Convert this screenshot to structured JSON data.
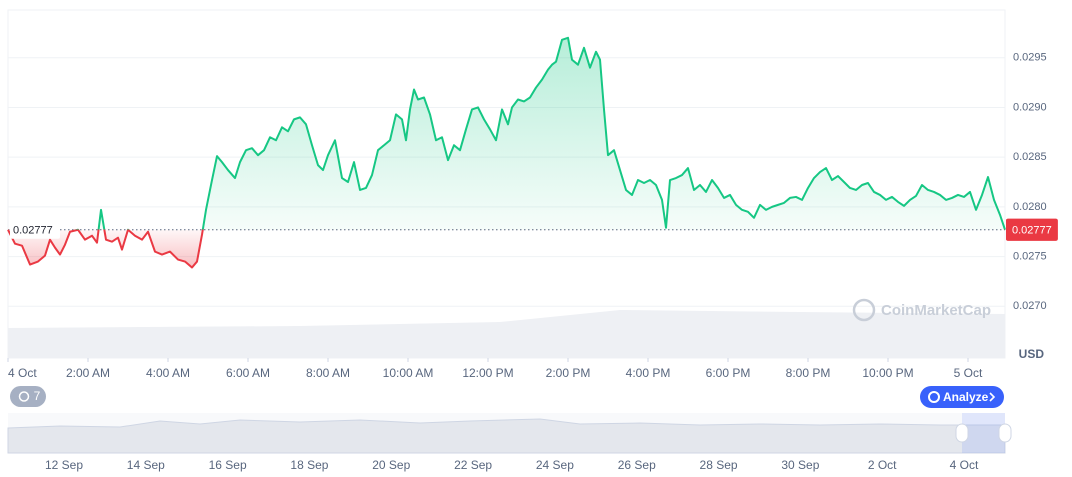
{
  "chart_data": {
    "type": "line",
    "x": [
      0,
      0.175,
      0.35,
      0.55,
      0.75,
      0.925,
      1.05,
      1.175,
      1.3,
      1.425,
      1.55,
      1.75,
      1.925,
      2.1,
      2.225,
      2.325,
      2.45,
      2.6,
      2.75,
      2.85,
      3,
      3.175,
      3.35,
      3.5,
      3.675,
      3.85,
      4.05,
      4.25,
      4.425,
      4.6,
      4.725,
      4.85,
      4.95,
      5.1,
      5.225,
      5.35,
      5.5,
      5.675,
      5.8,
      5.95,
      6.1,
      6.25,
      6.4,
      6.55,
      6.7,
      6.85,
      7,
      7.15,
      7.3,
      7.45,
      7.6,
      7.75,
      7.875,
      8,
      8.175,
      8.35,
      8.5,
      8.65,
      8.8,
      8.95,
      9.1,
      9.25,
      9.4,
      9.55,
      9.7,
      9.85,
      9.95,
      10.05,
      10.15,
      10.25,
      10.4,
      10.55,
      10.7,
      10.85,
      11,
      11.15,
      11.3,
      11.45,
      11.6,
      11.75,
      11.9,
      12.05,
      12.2,
      12.35,
      12.5,
      12.6,
      12.75,
      12.9,
      13.05,
      13.2,
      13.35,
      13.5,
      13.6,
      13.7,
      13.85,
      14,
      14.1,
      14.25,
      14.4,
      14.55,
      14.7,
      14.8,
      14.9,
      15,
      15.15,
      15.3,
      15.45,
      15.6,
      15.75,
      15.9,
      16.05,
      16.2,
      16.35,
      16.45,
      16.55,
      16.7,
      16.85,
      17,
      17.15,
      17.3,
      17.45,
      17.6,
      17.75,
      17.9,
      18.05,
      18.2,
      18.35,
      18.5,
      18.65,
      18.8,
      18.95,
      19.1,
      19.25,
      19.4,
      19.55,
      19.7,
      19.85,
      20,
      20.15,
      20.3,
      20.45,
      20.6,
      20.75,
      20.9,
      21.05,
      21.2,
      21.35,
      21.5,
      21.65,
      21.8,
      21.95,
      22.1,
      22.25,
      22.4,
      22.55,
      22.7,
      22.85,
      23,
      23.15,
      23.3,
      23.45,
      23.6,
      23.75,
      23.9,
      24.05,
      24.2,
      24.35,
      24.5,
      24.65,
      24.8,
      24.925
    ],
    "values": [
      0.02777,
      0.02763,
      0.02761,
      0.02742,
      0.02745,
      0.02751,
      0.02767,
      0.02759,
      0.02752,
      0.02762,
      0.02775,
      0.02777,
      0.02767,
      0.02771,
      0.02764,
      0.02797,
      0.02767,
      0.02765,
      0.02769,
      0.02757,
      0.02777,
      0.02771,
      0.02767,
      0.02775,
      0.02755,
      0.02752,
      0.02755,
      0.02747,
      0.02745,
      0.02739,
      0.02745,
      0.02772,
      0.02797,
      0.02827,
      0.02851,
      0.02845,
      0.02837,
      0.02829,
      0.02845,
      0.02857,
      0.02859,
      0.02852,
      0.02857,
      0.0287,
      0.02867,
      0.0288,
      0.02876,
      0.02888,
      0.0289,
      0.02883,
      0.02862,
      0.02842,
      0.02837,
      0.02852,
      0.02867,
      0.02829,
      0.02825,
      0.02845,
      0.02817,
      0.02819,
      0.02832,
      0.02857,
      0.02862,
      0.02867,
      0.02893,
      0.02888,
      0.02867,
      0.02898,
      0.02918,
      0.02908,
      0.0291,
      0.02893,
      0.02867,
      0.0287,
      0.02847,
      0.02862,
      0.02857,
      0.02878,
      0.02898,
      0.029,
      0.02888,
      0.02878,
      0.02867,
      0.02898,
      0.02883,
      0.029,
      0.02908,
      0.02906,
      0.0291,
      0.0292,
      0.02928,
      0.02938,
      0.02943,
      0.02946,
      0.02968,
      0.0297,
      0.02948,
      0.02943,
      0.0296,
      0.0294,
      0.02956,
      0.02948,
      0.02898,
      0.02852,
      0.02857,
      0.02837,
      0.02817,
      0.02812,
      0.02827,
      0.02824,
      0.02827,
      0.02822,
      0.02807,
      0.02779,
      0.02827,
      0.02829,
      0.02832,
      0.02839,
      0.02817,
      0.02822,
      0.02815,
      0.02827,
      0.02819,
      0.02809,
      0.02812,
      0.02802,
      0.02797,
      0.02795,
      0.02789,
      0.02802,
      0.02797,
      0.028,
      0.02802,
      0.02804,
      0.02809,
      0.0281,
      0.02807,
      0.02819,
      0.02829,
      0.02835,
      0.02839,
      0.02827,
      0.02831,
      0.02825,
      0.02819,
      0.02817,
      0.02822,
      0.02824,
      0.02815,
      0.02812,
      0.02807,
      0.0281,
      0.02805,
      0.02801,
      0.02807,
      0.02811,
      0.02822,
      0.02817,
      0.02815,
      0.02812,
      0.02807,
      0.02809,
      0.02812,
      0.0281,
      0.02815,
      0.02797,
      0.02812,
      0.0283,
      0.02807,
      0.02792,
      0.02777
    ],
    "reference": 0.02777,
    "color_up": "#16c784",
    "color_down": "#ea3943",
    "xlim": [
      0,
      24.925
    ],
    "ylim": [
      0.02648,
      0.02998
    ],
    "xticks": [
      {
        "value": 0,
        "label": "4 Oct"
      },
      {
        "value": 2,
        "label": "2:00 AM"
      },
      {
        "value": 4,
        "label": "4:00 AM"
      },
      {
        "value": 6,
        "label": "6:00 AM"
      },
      {
        "value": 8,
        "label": "8:00 AM"
      },
      {
        "value": 10,
        "label": "10:00 AM"
      },
      {
        "value": 12,
        "label": "12:00 PM"
      },
      {
        "value": 14,
        "label": "2:00 PM"
      },
      {
        "value": 16,
        "label": "4:00 PM"
      },
      {
        "value": 18,
        "label": "6:00 PM"
      },
      {
        "value": 20,
        "label": "8:00 PM"
      },
      {
        "value": 22,
        "label": "10:00 PM"
      },
      {
        "value": 24,
        "label": "5 Oct"
      }
    ],
    "yticks": [
      {
        "value": 0.027,
        "label": "0.0270"
      },
      0.0275,
      {
        "value": 0.028,
        "label": "0.0280"
      },
      0.0285,
      {
        "value": 0.029,
        "label": "0.0290"
      },
      0.0295
    ],
    "grid": true,
    "y_unit": "USD",
    "watermark": "CoinMarketCap"
  },
  "controls": {
    "history_count": 7,
    "analyze_button": "Analyze"
  },
  "navigator": {
    "labels": [
      "12 Sep",
      "14 Sep",
      "16 Sep",
      "18 Sep",
      "20 Sep",
      "22 Sep",
      "24 Sep",
      "26 Sep",
      "28 Sep",
      "30 Sep",
      "2 Oct",
      "4 Oct"
    ]
  }
}
